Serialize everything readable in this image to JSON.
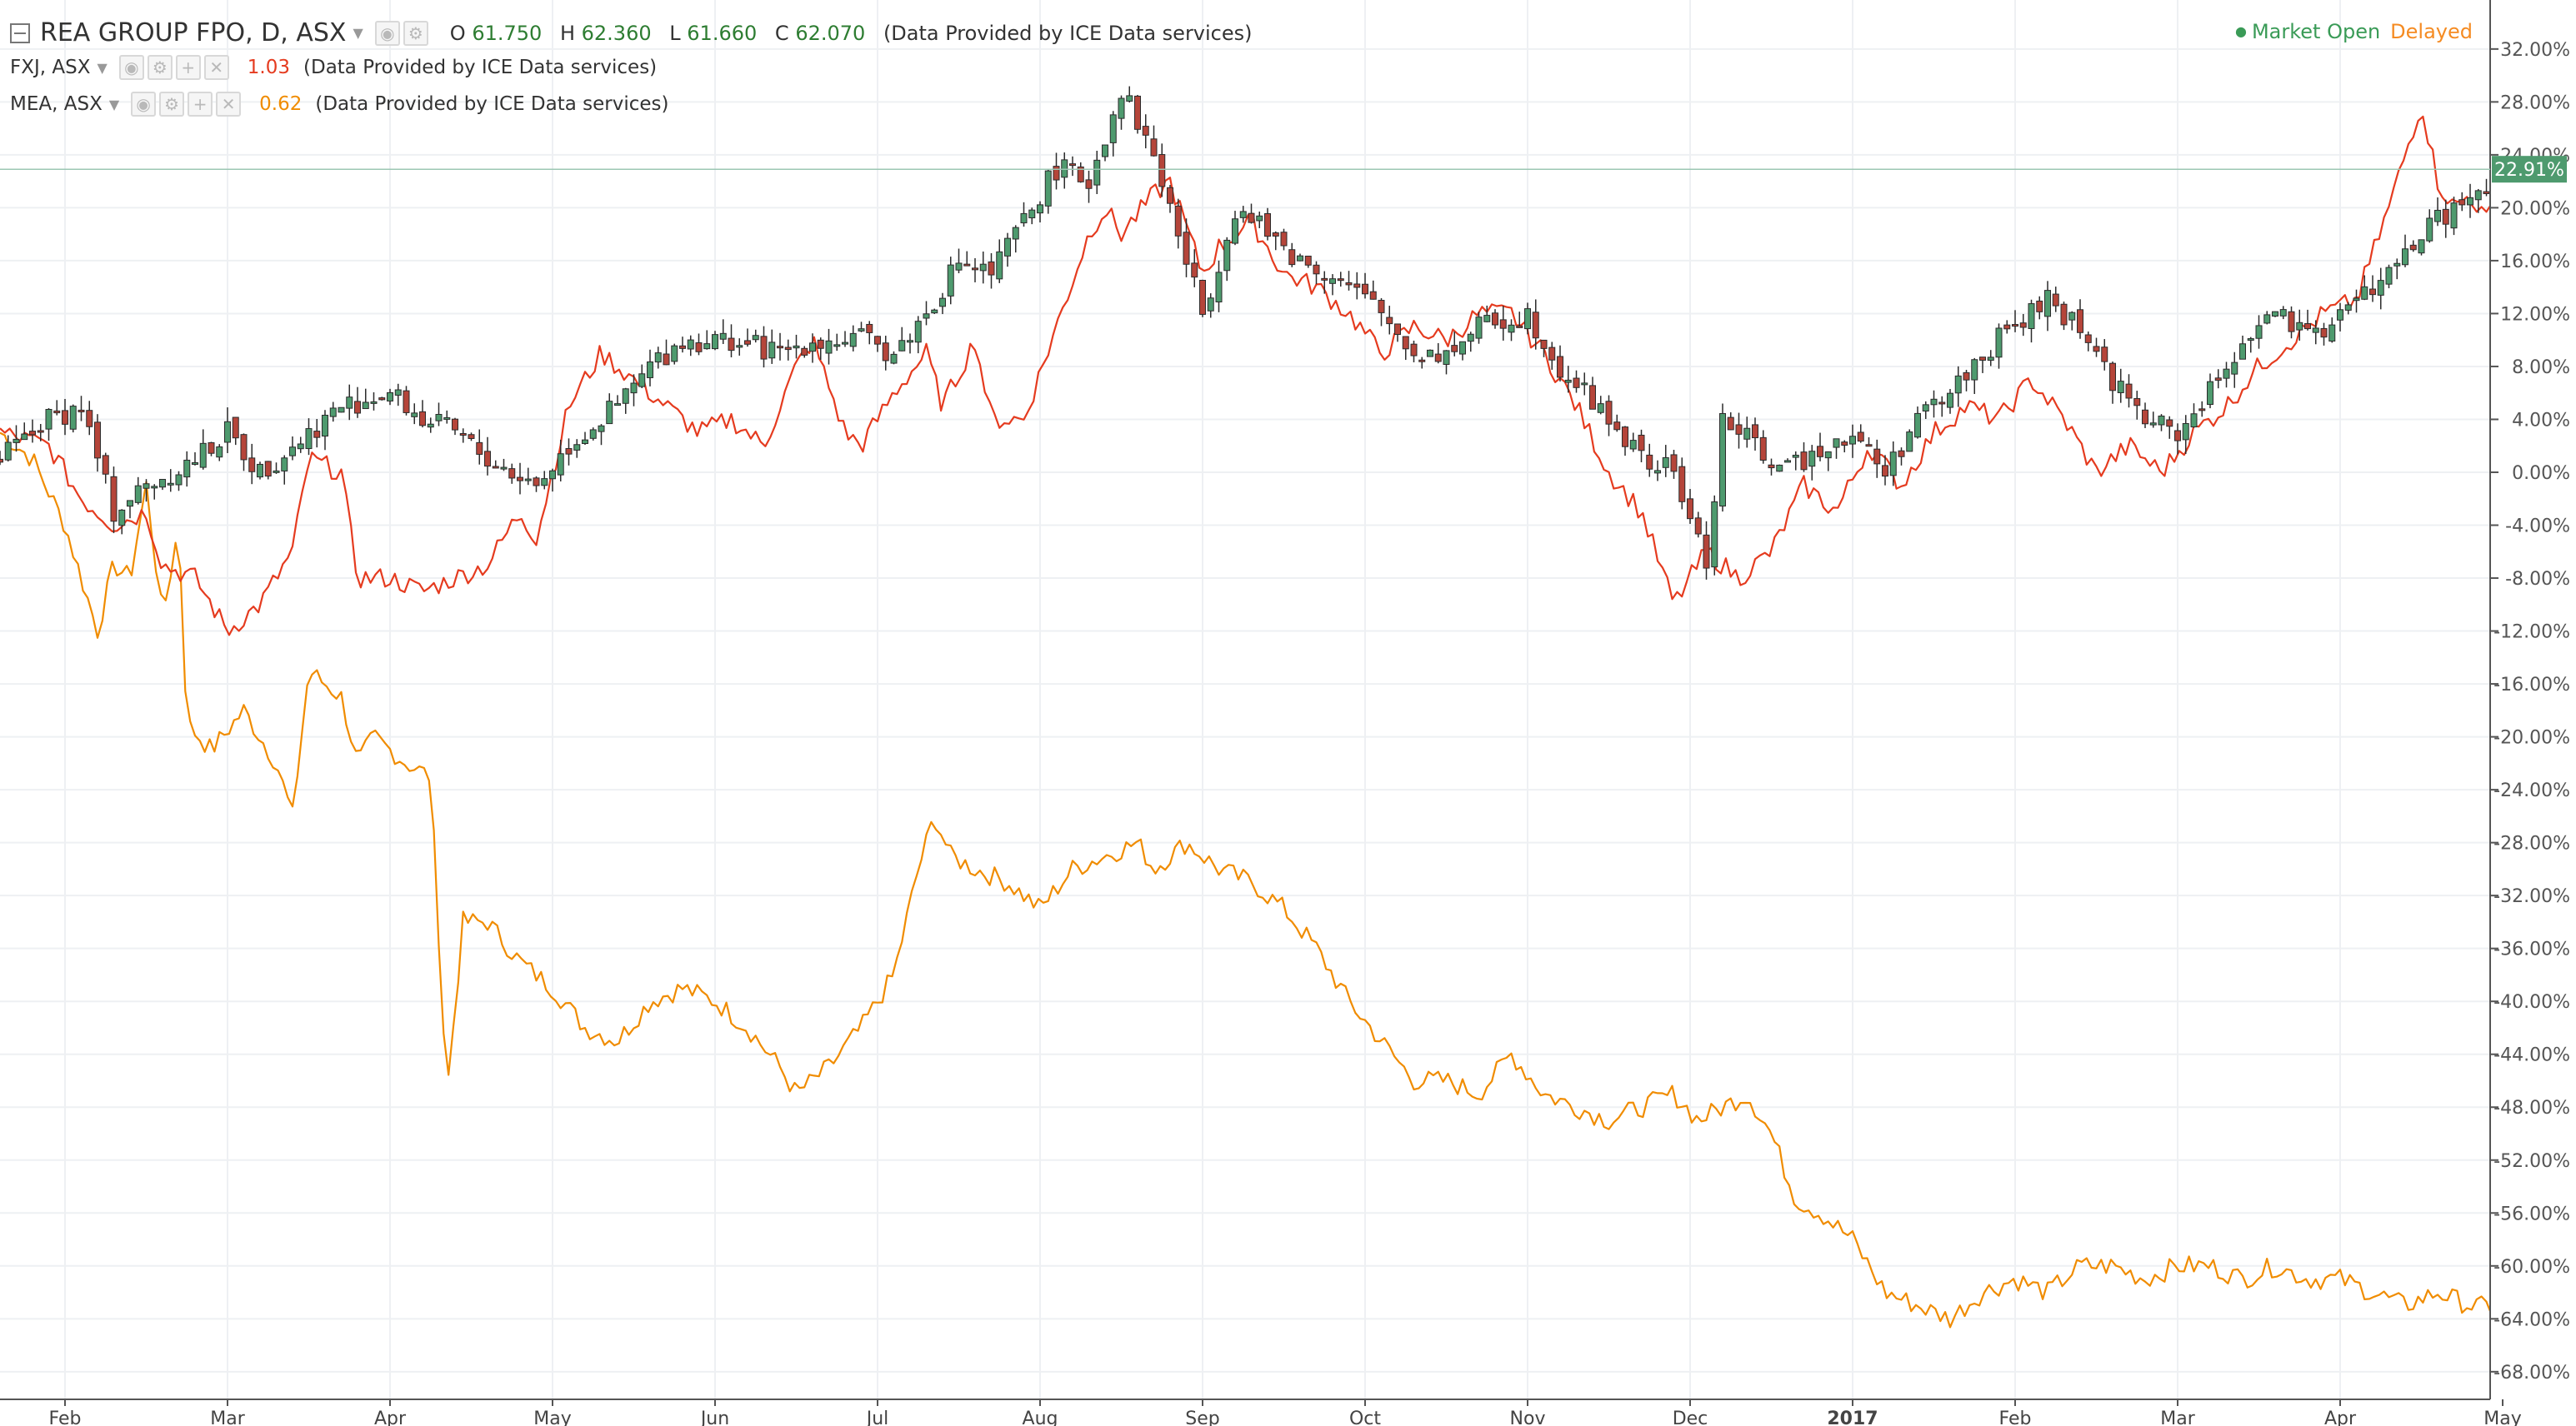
{
  "header": {
    "symbol": "REA GROUP FPO, D, ASX",
    "open_label": "O",
    "open": "61.750",
    "high_label": "H",
    "high": "62.360",
    "low_label": "L",
    "low": "61.660",
    "close_label": "C",
    "close": "62.070",
    "provider": "(Data Provided by ICE Data services)",
    "market_status": "Market Open",
    "delay_status": "Delayed"
  },
  "compare": [
    {
      "symbol": "FXJ, ASX",
      "value": "1.03",
      "provider": "(Data Provided by ICE Data services)",
      "color": "#e53b1f"
    },
    {
      "symbol": "MEA, ASX",
      "value": "0.62",
      "provider": "(Data Provided by ICE Data services)",
      "color": "#f08c00"
    }
  ],
  "icons": [
    "collapse-icon",
    "eye-icon",
    "gear-icon",
    "plus-icon",
    "close-icon",
    "chevron-down-icon"
  ],
  "colors": {
    "up": "#4e9a6e",
    "down": "#b5453a",
    "fxj": "#e53b1f",
    "mea": "#f08c00",
    "last_price": "#4e9a6e"
  },
  "chart_data": {
    "type": "line",
    "y_axis_unit": "percent",
    "ylim": [
      -69,
      33
    ],
    "y_ticks": [
      32,
      28,
      24,
      20,
      16,
      12,
      8,
      4,
      0,
      -4,
      -8,
      -12,
      -16,
      -20,
      -24,
      -28,
      -32,
      -36,
      -40,
      -44,
      -48,
      -52,
      -56,
      -60,
      -64,
      -68
    ],
    "y_tick_labels": [
      "32.00%",
      "28.00%",
      "24.00%",
      "20.00%",
      "16.00%",
      "12.00%",
      "8.00%",
      "4.00%",
      "0.00%",
      "-4.00%",
      "-8.00%",
      "-12.00%",
      "-16.00%",
      "-20.00%",
      "-24.00%",
      "-28.00%",
      "-32.00%",
      "-36.00%",
      "-40.00%",
      "-44.00%",
      "-48.00%",
      "-52.00%",
      "-56.00%",
      "-60.00%",
      "-64.00%",
      "-68.00%"
    ],
    "x_tick_labels": [
      "Feb",
      "Mar",
      "Apr",
      "May",
      "Jun",
      "Jul",
      "Aug",
      "Sep",
      "Oct",
      "Nov",
      "Dec",
      "2017",
      "Feb",
      "Mar",
      "Apr",
      "May"
    ],
    "x_tick_pos": [
      0.5,
      1.5,
      2.5,
      3.5,
      4.5,
      5.5,
      6.5,
      7.5,
      8.5,
      9.5,
      10.5,
      11.5,
      12.5,
      13.5,
      14.5,
      15.5
    ],
    "xlim": [
      0.1,
      15.46
    ],
    "last_price_label": "22.91%",
    "last_price": 22.91,
    "grid": true,
    "series": [
      {
        "name": "REA GROUP FPO, D, ASX",
        "style": "candlestick",
        "anchors": [
          [
            0.1,
            1
          ],
          [
            0.4,
            4
          ],
          [
            0.6,
            5
          ],
          [
            0.8,
            -3
          ],
          [
            1.0,
            -1
          ],
          [
            1.3,
            1
          ],
          [
            1.5,
            3
          ],
          [
            1.7,
            0
          ],
          [
            1.9,
            2
          ],
          [
            2.2,
            5
          ],
          [
            2.5,
            6
          ],
          [
            2.7,
            4
          ],
          [
            2.9,
            3
          ],
          [
            3.1,
            1
          ],
          [
            3.4,
            -1
          ],
          [
            3.6,
            2
          ],
          [
            3.9,
            5
          ],
          [
            4.1,
            8
          ],
          [
            4.3,
            10
          ],
          [
            4.6,
            10
          ],
          [
            4.9,
            9
          ],
          [
            5.1,
            10
          ],
          [
            5.4,
            10
          ],
          [
            5.6,
            9
          ],
          [
            5.8,
            12
          ],
          [
            6.0,
            16
          ],
          [
            6.2,
            15
          ],
          [
            6.4,
            19
          ],
          [
            6.6,
            23
          ],
          [
            6.8,
            22
          ],
          [
            7.0,
            29
          ],
          [
            7.2,
            24
          ],
          [
            7.3,
            20
          ],
          [
            7.5,
            12
          ],
          [
            7.7,
            20
          ],
          [
            7.9,
            18
          ],
          [
            8.1,
            16
          ],
          [
            8.3,
            15
          ],
          [
            8.6,
            12
          ],
          [
            8.8,
            9
          ],
          [
            9.0,
            9
          ],
          [
            9.2,
            11
          ],
          [
            9.5,
            12
          ],
          [
            9.7,
            8
          ],
          [
            10.0,
            4
          ],
          [
            10.2,
            1
          ],
          [
            10.4,
            0
          ],
          [
            10.6,
            -7
          ],
          [
            10.7,
            4
          ],
          [
            10.9,
            2
          ],
          [
            11.1,
            0
          ],
          [
            11.3,
            2
          ],
          [
            11.5,
            3
          ],
          [
            11.7,
            0
          ],
          [
            11.9,
            4
          ],
          [
            12.1,
            6
          ],
          [
            12.3,
            9
          ],
          [
            12.5,
            11
          ],
          [
            12.7,
            13
          ],
          [
            12.9,
            11
          ],
          [
            13.1,
            7
          ],
          [
            13.3,
            4
          ],
          [
            13.5,
            3
          ],
          [
            13.7,
            6
          ],
          [
            13.9,
            10
          ],
          [
            14.1,
            12
          ],
          [
            14.3,
            10
          ],
          [
            14.6,
            13
          ],
          [
            14.8,
            15
          ],
          [
            15.0,
            18
          ],
          [
            15.2,
            20
          ],
          [
            15.4,
            21
          ],
          [
            15.46,
            22.9
          ]
        ]
      },
      {
        "name": "FXJ, ASX",
        "value": "1.03",
        "anchors": [
          [
            0.1,
            3
          ],
          [
            0.4,
            2
          ],
          [
            0.6,
            -2
          ],
          [
            0.8,
            -4
          ],
          [
            1.0,
            -3
          ],
          [
            1.1,
            -7
          ],
          [
            1.3,
            -8
          ],
          [
            1.5,
            -12
          ],
          [
            1.7,
            -10
          ],
          [
            1.9,
            -6
          ],
          [
            2.0,
            1
          ],
          [
            2.2,
            0
          ],
          [
            2.3,
            -8
          ],
          [
            2.5,
            -8
          ],
          [
            2.7,
            -9
          ],
          [
            2.9,
            -8
          ],
          [
            3.1,
            -7
          ],
          [
            3.3,
            -3
          ],
          [
            3.4,
            -5
          ],
          [
            3.6,
            5
          ],
          [
            3.8,
            9
          ],
          [
            4.0,
            7
          ],
          [
            4.2,
            5
          ],
          [
            4.4,
            3
          ],
          [
            4.6,
            4
          ],
          [
            4.8,
            2
          ],
          [
            5.0,
            8
          ],
          [
            5.1,
            10
          ],
          [
            5.3,
            3
          ],
          [
            5.4,
            2
          ],
          [
            5.6,
            6
          ],
          [
            5.8,
            9
          ],
          [
            5.9,
            5
          ],
          [
            6.1,
            10
          ],
          [
            6.2,
            4
          ],
          [
            6.4,
            4
          ],
          [
            6.6,
            11
          ],
          [
            6.8,
            18
          ],
          [
            6.9,
            20
          ],
          [
            7.0,
            18
          ],
          [
            7.2,
            21
          ],
          [
            7.3,
            22
          ],
          [
            7.5,
            15
          ],
          [
            7.6,
            17
          ],
          [
            7.8,
            19
          ],
          [
            8.0,
            15
          ],
          [
            8.2,
            14
          ],
          [
            8.4,
            12
          ],
          [
            8.6,
            9
          ],
          [
            8.8,
            11
          ],
          [
            9.0,
            10
          ],
          [
            9.2,
            12
          ],
          [
            9.4,
            12
          ],
          [
            9.6,
            9
          ],
          [
            9.8,
            5
          ],
          [
            10.0,
            0
          ],
          [
            10.2,
            -3
          ],
          [
            10.4,
            -10
          ],
          [
            10.6,
            -6
          ],
          [
            10.8,
            -8
          ],
          [
            11.0,
            -6
          ],
          [
            11.2,
            -1
          ],
          [
            11.4,
            -3
          ],
          [
            11.6,
            2
          ],
          [
            11.8,
            -1
          ],
          [
            12.0,
            3
          ],
          [
            12.2,
            5
          ],
          [
            12.4,
            4
          ],
          [
            12.6,
            7
          ],
          [
            12.8,
            4
          ],
          [
            13.0,
            0
          ],
          [
            13.2,
            2
          ],
          [
            13.4,
            0
          ],
          [
            13.6,
            3
          ],
          [
            13.8,
            5
          ],
          [
            14.0,
            8
          ],
          [
            14.2,
            10
          ],
          [
            14.4,
            12
          ],
          [
            14.6,
            13
          ],
          [
            14.8,
            20
          ],
          [
            15.0,
            28
          ],
          [
            15.1,
            22
          ],
          [
            15.2,
            20
          ],
          [
            15.3,
            21
          ],
          [
            15.4,
            19
          ],
          [
            15.46,
            21
          ]
        ]
      },
      {
        "name": "MEA, ASX",
        "value": "0.62",
        "anchors": [
          [
            0.1,
            3
          ],
          [
            0.3,
            1
          ],
          [
            0.5,
            -4
          ],
          [
            0.7,
            -12
          ],
          [
            0.8,
            -7
          ],
          [
            0.9,
            -8
          ],
          [
            1.0,
            -1
          ],
          [
            1.1,
            -11
          ],
          [
            1.2,
            -4
          ],
          [
            1.25,
            -19
          ],
          [
            1.4,
            -21
          ],
          [
            1.6,
            -18
          ],
          [
            1.8,
            -22
          ],
          [
            1.9,
            -26
          ],
          [
            2.0,
            -15
          ],
          [
            2.2,
            -17
          ],
          [
            2.3,
            -22
          ],
          [
            2.4,
            -20
          ],
          [
            2.6,
            -22
          ],
          [
            2.75,
            -23
          ],
          [
            2.85,
            -47
          ],
          [
            2.95,
            -34
          ],
          [
            3.1,
            -34
          ],
          [
            3.3,
            -37
          ],
          [
            3.5,
            -39
          ],
          [
            3.7,
            -42
          ],
          [
            3.9,
            -43
          ],
          [
            4.1,
            -40
          ],
          [
            4.3,
            -39
          ],
          [
            4.5,
            -40
          ],
          [
            4.7,
            -42
          ],
          [
            4.9,
            -45
          ],
          [
            5.0,
            -47
          ],
          [
            5.2,
            -45
          ],
          [
            5.4,
            -42
          ],
          [
            5.6,
            -38
          ],
          [
            5.75,
            -30
          ],
          [
            5.85,
            -26
          ],
          [
            5.95,
            -29
          ],
          [
            6.1,
            -30
          ],
          [
            6.3,
            -31
          ],
          [
            6.5,
            -33
          ],
          [
            6.7,
            -30
          ],
          [
            6.9,
            -29
          ],
          [
            7.1,
            -28
          ],
          [
            7.2,
            -30
          ],
          [
            7.4,
            -28
          ],
          [
            7.6,
            -30
          ],
          [
            7.8,
            -31
          ],
          [
            8.0,
            -33
          ],
          [
            8.2,
            -36
          ],
          [
            8.4,
            -40
          ],
          [
            8.6,
            -43
          ],
          [
            8.8,
            -46
          ],
          [
            9.0,
            -46
          ],
          [
            9.2,
            -47
          ],
          [
            9.4,
            -44
          ],
          [
            9.6,
            -47
          ],
          [
            9.8,
            -48
          ],
          [
            10.0,
            -49
          ],
          [
            10.2,
            -48
          ],
          [
            10.4,
            -47
          ],
          [
            10.55,
            -49
          ],
          [
            10.7,
            -48
          ],
          [
            10.85,
            -47
          ],
          [
            11.0,
            -50
          ],
          [
            11.15,
            -55
          ],
          [
            11.3,
            -56
          ],
          [
            11.5,
            -58
          ],
          [
            11.7,
            -62
          ],
          [
            11.9,
            -63
          ],
          [
            12.1,
            -64
          ],
          [
            12.3,
            -62
          ],
          [
            12.5,
            -61
          ],
          [
            12.7,
            -62
          ],
          [
            12.9,
            -60
          ],
          [
            13.1,
            -60
          ],
          [
            13.3,
            -61
          ],
          [
            13.5,
            -60
          ],
          [
            13.7,
            -60
          ],
          [
            13.9,
            -61
          ],
          [
            14.1,
            -60
          ],
          [
            14.3,
            -61
          ],
          [
            14.5,
            -61
          ],
          [
            14.7,
            -62
          ],
          [
            14.9,
            -63
          ],
          [
            15.1,
            -62
          ],
          [
            15.3,
            -63
          ],
          [
            15.46,
            -63.2
          ]
        ]
      }
    ]
  }
}
